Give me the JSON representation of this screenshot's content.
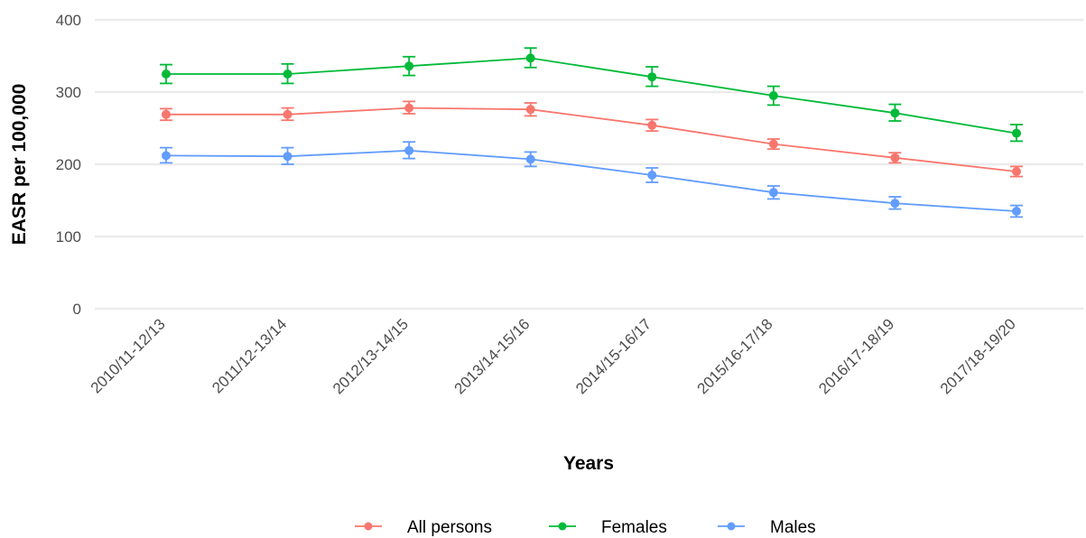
{
  "chart_data": {
    "type": "line",
    "title": "",
    "xlabel": "Years",
    "ylabel": "EASR per 100,000",
    "ylim": [
      0,
      400
    ],
    "yticks": [
      0,
      100,
      200,
      300,
      400
    ],
    "grid": true,
    "legend_position": "bottom",
    "categories": [
      "2010/11-12/13",
      "2011/12-13/14",
      "2012/13-14/15",
      "2013/14-15/16",
      "2014/15-16/17",
      "2015/16-17/18",
      "2016/17-18/19",
      "2017/18-19/20"
    ],
    "series": [
      {
        "name": "All persons",
        "color": "#F8766D",
        "values": [
          269,
          269,
          278,
          276,
          254,
          228,
          209,
          190
        ],
        "lower": [
          261,
          261,
          270,
          267,
          246,
          221,
          202,
          183
        ],
        "upper": [
          277,
          278,
          287,
          285,
          262,
          235,
          216,
          197
        ]
      },
      {
        "name": "Females",
        "color": "#00BA38",
        "values": [
          325,
          325,
          336,
          347,
          321,
          295,
          271,
          243
        ],
        "lower": [
          312,
          312,
          323,
          334,
          308,
          282,
          260,
          232
        ],
        "upper": [
          338,
          339,
          349,
          361,
          335,
          308,
          283,
          255
        ]
      },
      {
        "name": "Males",
        "color": "#619CFF",
        "values": [
          212,
          211,
          219,
          207,
          185,
          161,
          146,
          135
        ],
        "lower": [
          202,
          200,
          208,
          197,
          175,
          152,
          138,
          127
        ],
        "upper": [
          223,
          223,
          231,
          217,
          195,
          170,
          155,
          143
        ]
      }
    ]
  }
}
